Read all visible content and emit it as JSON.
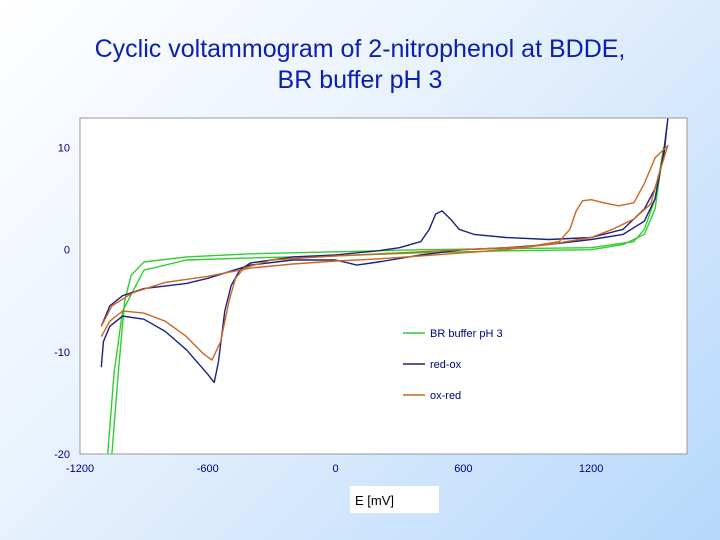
{
  "slide": {
    "title_line1": "Cyclic voltammogram of 2-nitrophenol at BDDE,",
    "title_line2": "BR buffer pH 3"
  },
  "chart_data": {
    "type": "line",
    "title": "Cyclic voltammogram of 2-nitrophenol at BDDE, BR buffer pH 3",
    "xlabel": "E [mV]",
    "ylabel": "",
    "xlim": [
      -1200,
      1650
    ],
    "ylim": [
      -20,
      13
    ],
    "xticks": [
      -1200,
      -600,
      0,
      600,
      1200
    ],
    "yticks": [
      10,
      0,
      -10,
      -20
    ],
    "grid": false,
    "legend_position": "bottom-right",
    "series": [
      {
        "name": "BR buffer pH 3",
        "color": "#33cc33",
        "points": [
          [
            -1050,
            -20
          ],
          [
            -1020,
            -12
          ],
          [
            -990,
            -5
          ],
          [
            -960,
            -2.5
          ],
          [
            -900,
            -1.2
          ],
          [
            -700,
            -0.7
          ],
          [
            -400,
            -0.4
          ],
          [
            0,
            -0.2
          ],
          [
            400,
            0
          ],
          [
            800,
            0.1
          ],
          [
            1200,
            0.2
          ],
          [
            1400,
            0.8
          ],
          [
            1450,
            2
          ],
          [
            1500,
            5
          ],
          [
            1540,
            10
          ],
          [
            1500,
            4
          ],
          [
            1450,
            1.5
          ],
          [
            1350,
            0.5
          ],
          [
            1200,
            0
          ],
          [
            800,
            -0.1
          ],
          [
            400,
            -0.3
          ],
          [
            0,
            -0.6
          ],
          [
            -400,
            -0.8
          ],
          [
            -700,
            -1
          ],
          [
            -900,
            -2
          ],
          [
            -1000,
            -6
          ],
          [
            -1040,
            -12
          ],
          [
            -1070,
            -20
          ]
        ]
      },
      {
        "name": "red-ox",
        "color": "#1a237e",
        "points": [
          [
            -1100,
            -11.5
          ],
          [
            -1090,
            -9
          ],
          [
            -1060,
            -7.5
          ],
          [
            -1000,
            -6.5
          ],
          [
            -900,
            -6.8
          ],
          [
            -800,
            -8
          ],
          [
            -700,
            -9.8
          ],
          [
            -600,
            -12.2
          ],
          [
            -570,
            -13
          ],
          [
            -550,
            -11
          ],
          [
            -520,
            -6
          ],
          [
            -490,
            -3.5
          ],
          [
            -450,
            -2
          ],
          [
            -400,
            -1.3
          ],
          [
            -200,
            -0.7
          ],
          [
            0,
            -0.5
          ],
          [
            100,
            -0.3
          ],
          [
            200,
            -0.1
          ],
          [
            300,
            0.2
          ],
          [
            400,
            0.8
          ],
          [
            440,
            2
          ],
          [
            470,
            3.5
          ],
          [
            500,
            3.8
          ],
          [
            540,
            3
          ],
          [
            580,
            2
          ],
          [
            650,
            1.5
          ],
          [
            800,
            1.2
          ],
          [
            1000,
            1
          ],
          [
            1200,
            1.2
          ],
          [
            1350,
            2
          ],
          [
            1450,
            4
          ],
          [
            1500,
            6
          ],
          [
            1540,
            9
          ],
          [
            1560,
            12.8
          ],
          [
            1540,
            9.5
          ],
          [
            1500,
            5
          ],
          [
            1450,
            2.8
          ],
          [
            1350,
            1.5
          ],
          [
            1200,
            1
          ],
          [
            1000,
            0.5
          ],
          [
            800,
            0.2
          ],
          [
            600,
            0
          ],
          [
            400,
            -0.5
          ],
          [
            200,
            -1.2
          ],
          [
            100,
            -1.5
          ],
          [
            0,
            -1
          ],
          [
            -200,
            -1
          ],
          [
            -400,
            -1.5
          ],
          [
            -600,
            -2.8
          ],
          [
            -700,
            -3.3
          ],
          [
            -900,
            -3.8
          ],
          [
            -1000,
            -4.5
          ],
          [
            -1060,
            -5.5
          ],
          [
            -1100,
            -7.5
          ]
        ]
      },
      {
        "name": "ox-red",
        "color": "#cc6622",
        "points": [
          [
            -1100,
            -8.5
          ],
          [
            -1060,
            -7
          ],
          [
            -1000,
            -6
          ],
          [
            -900,
            -6.2
          ],
          [
            -800,
            -7
          ],
          [
            -700,
            -8.5
          ],
          [
            -620,
            -10.2
          ],
          [
            -580,
            -10.8
          ],
          [
            -540,
            -9
          ],
          [
            -500,
            -5
          ],
          [
            -470,
            -2.8
          ],
          [
            -430,
            -1.8
          ],
          [
            -300,
            -1
          ],
          [
            0,
            -0.6
          ],
          [
            300,
            -0.3
          ],
          [
            600,
            0
          ],
          [
            900,
            0.3
          ],
          [
            1050,
            0.8
          ],
          [
            1100,
            2
          ],
          [
            1130,
            3.8
          ],
          [
            1160,
            4.8
          ],
          [
            1200,
            4.9
          ],
          [
            1260,
            4.6
          ],
          [
            1330,
            4.3
          ],
          [
            1400,
            4.6
          ],
          [
            1450,
            6.5
          ],
          [
            1500,
            9
          ],
          [
            1560,
            10.2
          ],
          [
            1520,
            7.5
          ],
          [
            1480,
            4.5
          ],
          [
            1400,
            3
          ],
          [
            1300,
            2
          ],
          [
            1200,
            1.2
          ],
          [
            1000,
            0.5
          ],
          [
            800,
            0
          ],
          [
            600,
            -0.3
          ],
          [
            400,
            -0.6
          ],
          [
            200,
            -0.9
          ],
          [
            0,
            -1.1
          ],
          [
            -200,
            -1.4
          ],
          [
            -400,
            -1.8
          ],
          [
            -600,
            -2.6
          ],
          [
            -800,
            -3.2
          ],
          [
            -950,
            -4.2
          ],
          [
            -1050,
            -5.5
          ],
          [
            -1100,
            -7.5
          ]
        ]
      }
    ]
  }
}
